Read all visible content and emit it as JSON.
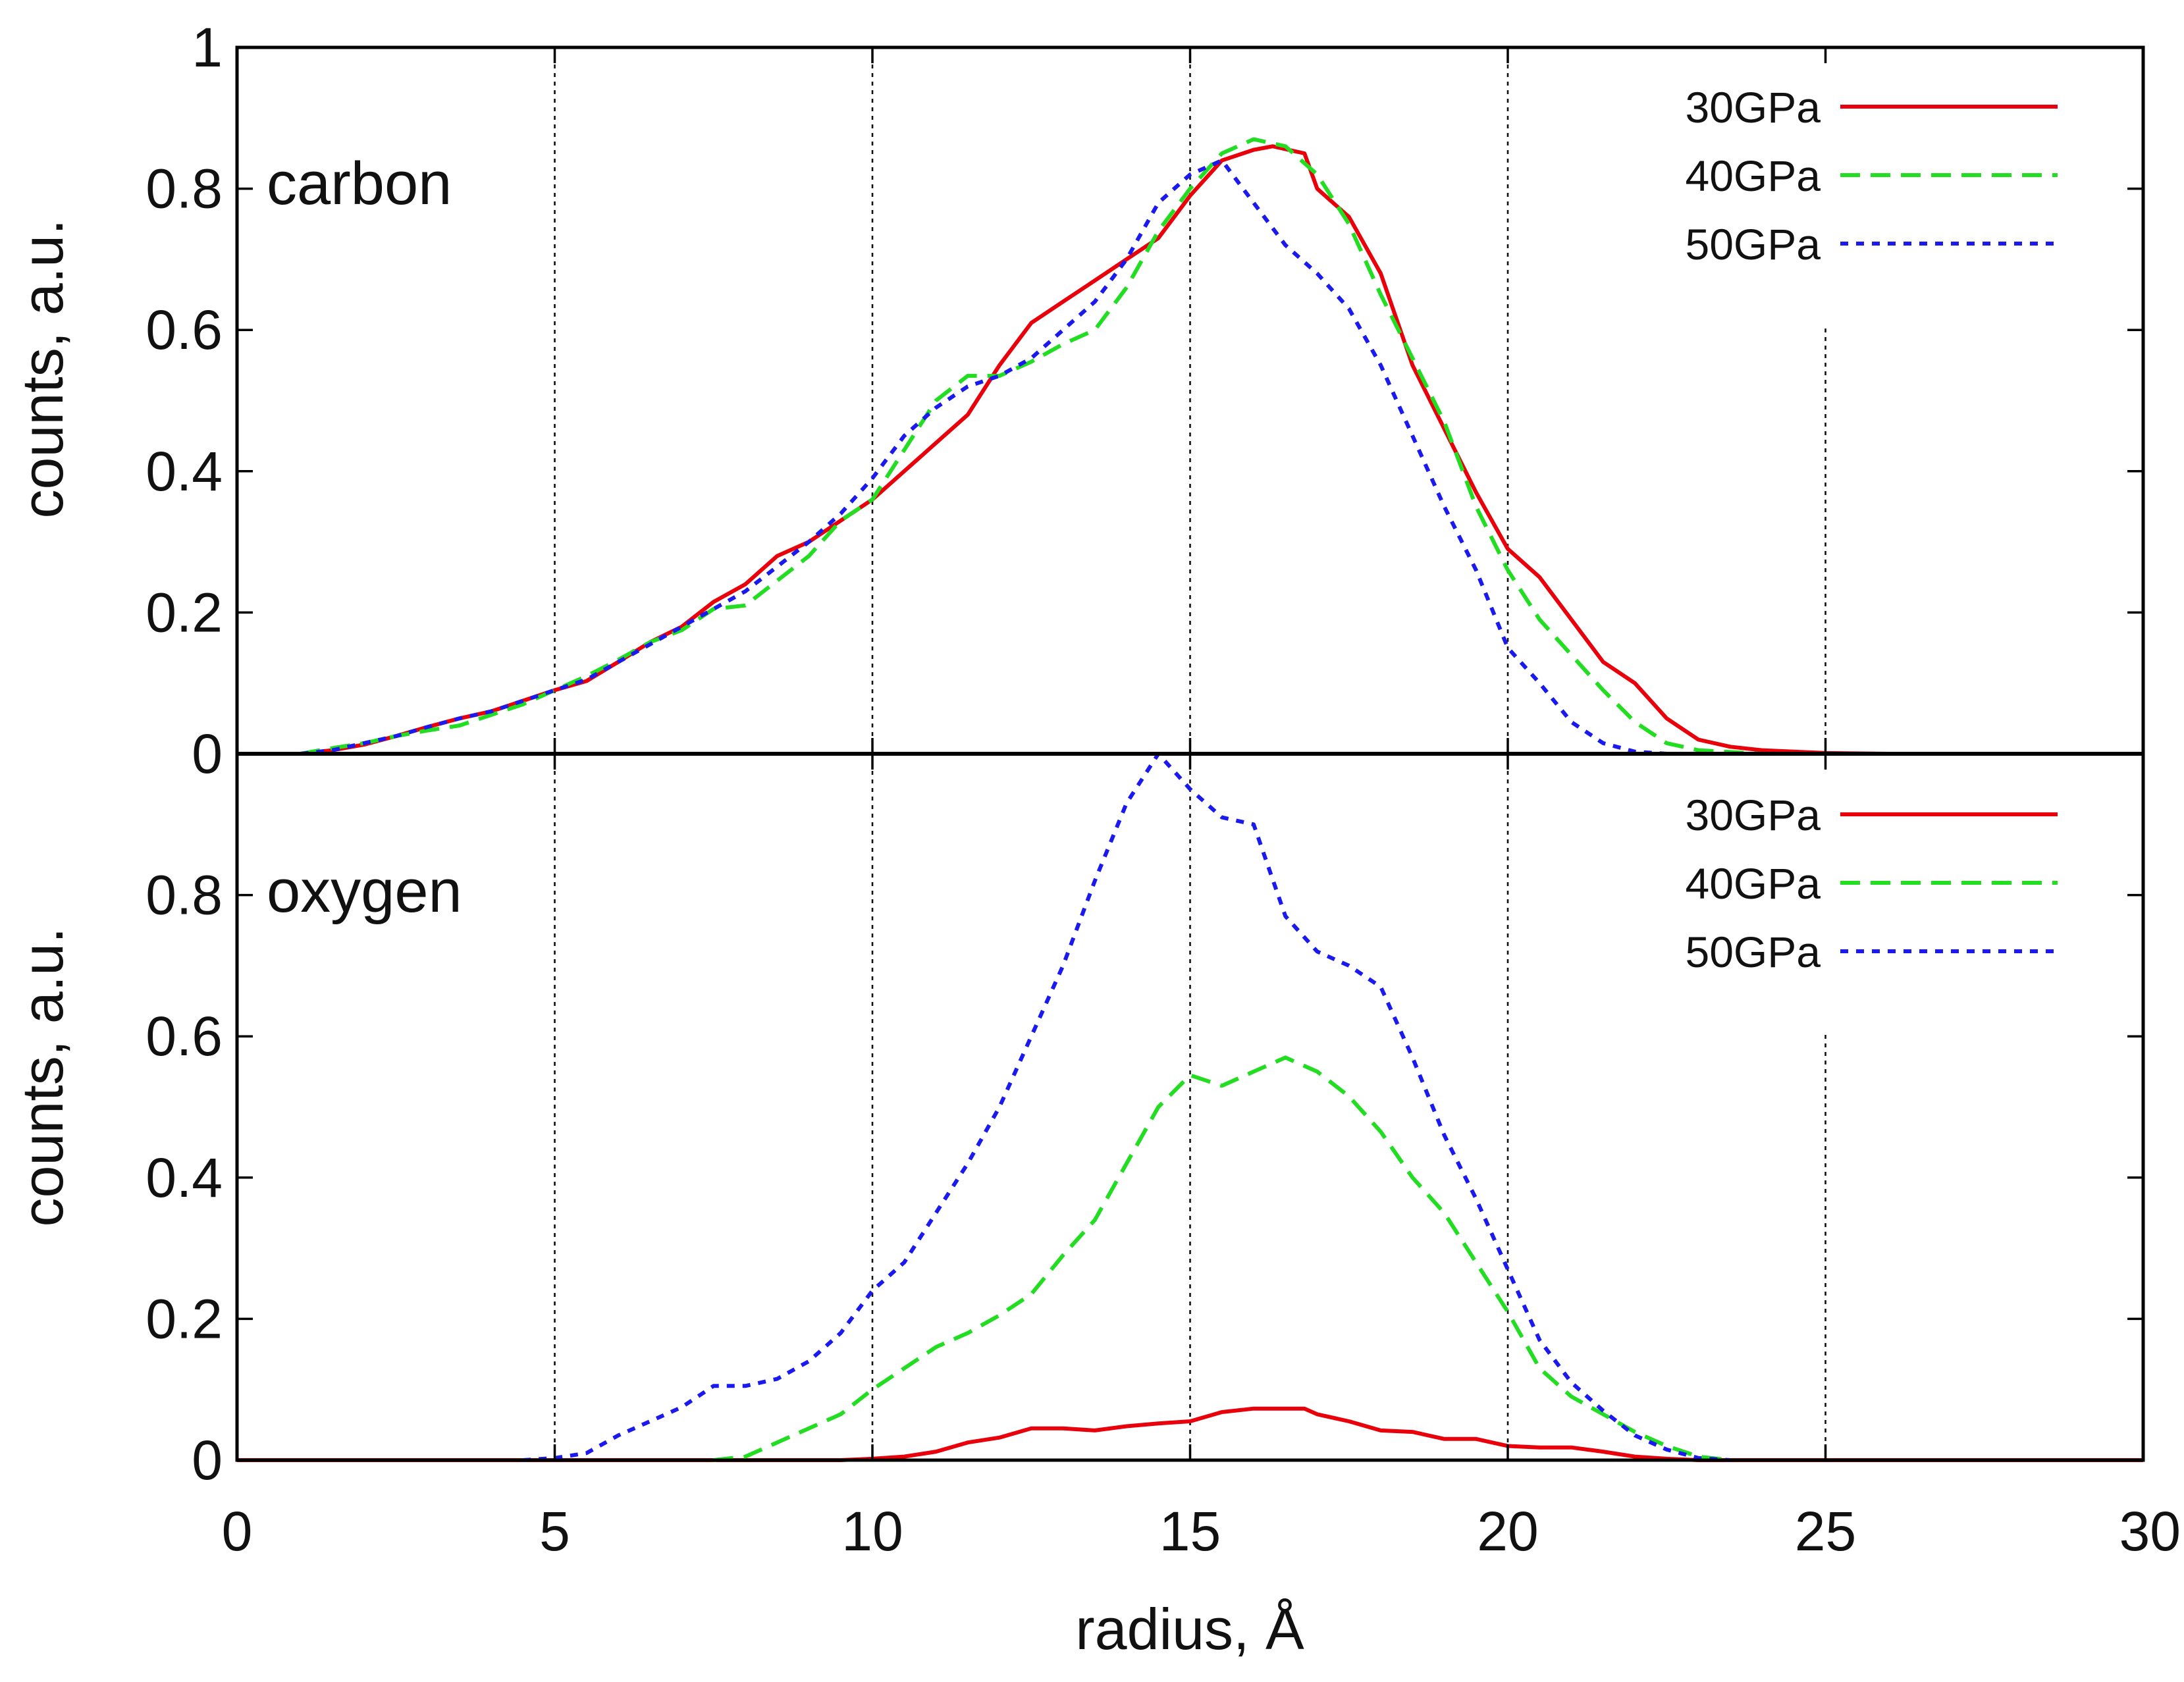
{
  "chart_data": [
    {
      "type": "line",
      "panel_label": "carbon",
      "xlabel": "radius, Å",
      "ylabel": "counts, a.u.",
      "xlim": [
        0,
        30
      ],
      "ylim": [
        0,
        1
      ],
      "x_ticks": [
        "0",
        "5",
        "10",
        "15",
        "20",
        "25",
        "30"
      ],
      "y_ticks": [
        "0",
        "0.2",
        "0.4",
        "0.6",
        "0.8",
        "1"
      ],
      "legend_position": "top-right",
      "series": [
        {
          "name": "30GPa",
          "color": "#e8000b",
          "dash": "solid",
          "points": [
            [
              1,
              0
            ],
            [
              1.5,
              0.005
            ],
            [
              2,
              0.013
            ],
            [
              2.5,
              0.025
            ],
            [
              3,
              0.038
            ],
            [
              3.5,
              0.05
            ],
            [
              4,
              0.06
            ],
            [
              4.5,
              0.075
            ],
            [
              5,
              0.09
            ],
            [
              5.5,
              0.103
            ],
            [
              6,
              0.13
            ],
            [
              6.5,
              0.158
            ],
            [
              7,
              0.18
            ],
            [
              7.5,
              0.215
            ],
            [
              8,
              0.24
            ],
            [
              8.5,
              0.28
            ],
            [
              9,
              0.3
            ],
            [
              9.5,
              0.33
            ],
            [
              10,
              0.36
            ],
            [
              10.5,
              0.4
            ],
            [
              11,
              0.44
            ],
            [
              11.5,
              0.48
            ],
            [
              12,
              0.55
            ],
            [
              12.5,
              0.61
            ],
            [
              13,
              0.64
            ],
            [
              13.5,
              0.67
            ],
            [
              14,
              0.7
            ],
            [
              14.5,
              0.73
            ],
            [
              15,
              0.79
            ],
            [
              15.5,
              0.84
            ],
            [
              16,
              0.855
            ],
            [
              16.3,
              0.86
            ],
            [
              16.8,
              0.85
            ],
            [
              17,
              0.8
            ],
            [
              17.5,
              0.76
            ],
            [
              18,
              0.68
            ],
            [
              18.5,
              0.55
            ],
            [
              19,
              0.46
            ],
            [
              19.5,
              0.37
            ],
            [
              20,
              0.29
            ],
            [
              20.5,
              0.25
            ],
            [
              21,
              0.19
            ],
            [
              21.5,
              0.13
            ],
            [
              22,
              0.1
            ],
            [
              22.5,
              0.05
            ],
            [
              23,
              0.02
            ],
            [
              23.5,
              0.01
            ],
            [
              24,
              0.005
            ],
            [
              25,
              0.001
            ],
            [
              26,
              0
            ]
          ]
        },
        {
          "name": "40GPa",
          "color": "#22dd22",
          "dash": "long-dash",
          "points": [
            [
              1,
              0
            ],
            [
              1.5,
              0.008
            ],
            [
              2,
              0.015
            ],
            [
              2.5,
              0.025
            ],
            [
              3,
              0.033
            ],
            [
              3.5,
              0.04
            ],
            [
              4,
              0.055
            ],
            [
              4.5,
              0.07
            ],
            [
              5,
              0.09
            ],
            [
              5.5,
              0.11
            ],
            [
              6,
              0.133
            ],
            [
              6.5,
              0.158
            ],
            [
              7,
              0.175
            ],
            [
              7.5,
              0.205
            ],
            [
              8,
              0.21
            ],
            [
              8.5,
              0.245
            ],
            [
              9,
              0.28
            ],
            [
              9.5,
              0.33
            ],
            [
              10,
              0.36
            ],
            [
              10.5,
              0.43
            ],
            [
              11,
              0.5
            ],
            [
              11.5,
              0.535
            ],
            [
              12,
              0.535
            ],
            [
              12.5,
              0.555
            ],
            [
              13,
              0.58
            ],
            [
              13.5,
              0.6
            ],
            [
              14,
              0.66
            ],
            [
              14.5,
              0.74
            ],
            [
              15,
              0.8
            ],
            [
              15.5,
              0.85
            ],
            [
              16,
              0.87
            ],
            [
              16.5,
              0.86
            ],
            [
              17,
              0.82
            ],
            [
              17.5,
              0.75
            ],
            [
              18,
              0.65
            ],
            [
              18.5,
              0.56
            ],
            [
              19,
              0.47
            ],
            [
              19.5,
              0.35
            ],
            [
              20,
              0.26
            ],
            [
              20.5,
              0.19
            ],
            [
              21,
              0.14
            ],
            [
              21.5,
              0.09
            ],
            [
              22,
              0.045
            ],
            [
              22.5,
              0.015
            ],
            [
              23,
              0.005
            ],
            [
              24,
              0
            ]
          ]
        },
        {
          "name": "50GPa",
          "color": "#1a1aee",
          "dash": "short-dash",
          "points": [
            [
              1,
              0
            ],
            [
              1.5,
              0.005
            ],
            [
              2,
              0.015
            ],
            [
              2.5,
              0.025
            ],
            [
              3,
              0.038
            ],
            [
              3.5,
              0.05
            ],
            [
              4,
              0.06
            ],
            [
              4.5,
              0.075
            ],
            [
              5,
              0.09
            ],
            [
              5.5,
              0.105
            ],
            [
              6,
              0.13
            ],
            [
              6.5,
              0.155
            ],
            [
              7,
              0.18
            ],
            [
              7.5,
              0.205
            ],
            [
              8,
              0.23
            ],
            [
              8.5,
              0.265
            ],
            [
              9,
              0.3
            ],
            [
              9.5,
              0.34
            ],
            [
              10,
              0.39
            ],
            [
              10.5,
              0.45
            ],
            [
              11,
              0.49
            ],
            [
              11.5,
              0.52
            ],
            [
              12,
              0.535
            ],
            [
              12.5,
              0.56
            ],
            [
              13,
              0.6
            ],
            [
              13.5,
              0.64
            ],
            [
              14,
              0.7
            ],
            [
              14.5,
              0.78
            ],
            [
              15,
              0.82
            ],
            [
              15.5,
              0.84
            ],
            [
              16,
              0.78
            ],
            [
              16.5,
              0.72
            ],
            [
              17,
              0.68
            ],
            [
              17.5,
              0.63
            ],
            [
              18,
              0.55
            ],
            [
              18.5,
              0.45
            ],
            [
              19,
              0.35
            ],
            [
              19.5,
              0.26
            ],
            [
              20,
              0.15
            ],
            [
              20.5,
              0.1
            ],
            [
              21,
              0.045
            ],
            [
              21.5,
              0.015
            ],
            [
              22,
              0.003
            ],
            [
              22.5,
              0
            ]
          ]
        }
      ]
    },
    {
      "type": "line",
      "panel_label": "oxygen",
      "xlabel": "radius, Å",
      "ylabel": "counts, a.u.",
      "xlim": [
        0,
        30
      ],
      "ylim": [
        0,
        1
      ],
      "x_ticks": [
        "0",
        "5",
        "10",
        "15",
        "20",
        "25",
        "30"
      ],
      "y_ticks": [
        "0",
        "0.2",
        "0.4",
        "0.6",
        "0.8"
      ],
      "legend_position": "top-right",
      "series": [
        {
          "name": "30GPa",
          "color": "#e8000b",
          "dash": "solid",
          "points": [
            [
              0,
              0
            ],
            [
              9.5,
              0
            ],
            [
              10,
              0.002
            ],
            [
              10.5,
              0.005
            ],
            [
              11,
              0.012
            ],
            [
              11.5,
              0.025
            ],
            [
              12,
              0.032
            ],
            [
              12.5,
              0.045
            ],
            [
              13,
              0.045
            ],
            [
              13.5,
              0.042
            ],
            [
              14,
              0.048
            ],
            [
              14.5,
              0.052
            ],
            [
              15,
              0.055
            ],
            [
              15.5,
              0.068
            ],
            [
              16,
              0.073
            ],
            [
              16.8,
              0.073
            ],
            [
              17,
              0.065
            ],
            [
              17.5,
              0.055
            ],
            [
              18,
              0.042
            ],
            [
              18.5,
              0.04
            ],
            [
              19,
              0.03
            ],
            [
              19.5,
              0.03
            ],
            [
              20,
              0.02
            ],
            [
              20.5,
              0.018
            ],
            [
              21,
              0.018
            ],
            [
              21.5,
              0.012
            ],
            [
              22,
              0.005
            ],
            [
              22.5,
              0.002
            ],
            [
              23,
              0
            ],
            [
              30,
              0
            ]
          ]
        },
        {
          "name": "40GPa",
          "color": "#22dd22",
          "dash": "long-dash",
          "points": [
            [
              7.5,
              0
            ],
            [
              8,
              0.005
            ],
            [
              8.5,
              0.025
            ],
            [
              9,
              0.045
            ],
            [
              9.5,
              0.065
            ],
            [
              10,
              0.1
            ],
            [
              10.5,
              0.13
            ],
            [
              11,
              0.16
            ],
            [
              11.5,
              0.18
            ],
            [
              12,
              0.205
            ],
            [
              12.5,
              0.235
            ],
            [
              13,
              0.29
            ],
            [
              13.5,
              0.34
            ],
            [
              14,
              0.42
            ],
            [
              14.5,
              0.5
            ],
            [
              15,
              0.545
            ],
            [
              15.5,
              0.53
            ],
            [
              16,
              0.55
            ],
            [
              16.5,
              0.57
            ],
            [
              17,
              0.55
            ],
            [
              17.5,
              0.515
            ],
            [
              18,
              0.465
            ],
            [
              18.5,
              0.4
            ],
            [
              19,
              0.35
            ],
            [
              19.5,
              0.28
            ],
            [
              20,
              0.21
            ],
            [
              20.5,
              0.13
            ],
            [
              21,
              0.09
            ],
            [
              21.5,
              0.065
            ],
            [
              22,
              0.04
            ],
            [
              22.5,
              0.02
            ],
            [
              23,
              0.005
            ],
            [
              23.5,
              0
            ]
          ]
        },
        {
          "name": "50GPa",
          "color": "#1a1aee",
          "dash": "short-dash",
          "points": [
            [
              4.5,
              0
            ],
            [
              5,
              0.003
            ],
            [
              5.5,
              0.01
            ],
            [
              6,
              0.035
            ],
            [
              6.5,
              0.055
            ],
            [
              7,
              0.075
            ],
            [
              7.5,
              0.105
            ],
            [
              8,
              0.105
            ],
            [
              8.5,
              0.115
            ],
            [
              9,
              0.14
            ],
            [
              9.5,
              0.18
            ],
            [
              10,
              0.24
            ],
            [
              10.5,
              0.28
            ],
            [
              11,
              0.35
            ],
            [
              11.5,
              0.42
            ],
            [
              12,
              0.5
            ],
            [
              12.5,
              0.6
            ],
            [
              13,
              0.7
            ],
            [
              13.5,
              0.82
            ],
            [
              14,
              0.93
            ],
            [
              14.5,
              1.0
            ],
            [
              15,
              0.95
            ],
            [
              15.5,
              0.91
            ],
            [
              16,
              0.9
            ],
            [
              16.5,
              0.77
            ],
            [
              17,
              0.72
            ],
            [
              17.5,
              0.7
            ],
            [
              18,
              0.67
            ],
            [
              18.5,
              0.57
            ],
            [
              19,
              0.46
            ],
            [
              19.5,
              0.37
            ],
            [
              20,
              0.27
            ],
            [
              20.5,
              0.17
            ],
            [
              21,
              0.11
            ],
            [
              21.5,
              0.07
            ],
            [
              22,
              0.035
            ],
            [
              22.5,
              0.015
            ],
            [
              23,
              0.003
            ],
            [
              23.5,
              0
            ]
          ]
        }
      ]
    }
  ]
}
